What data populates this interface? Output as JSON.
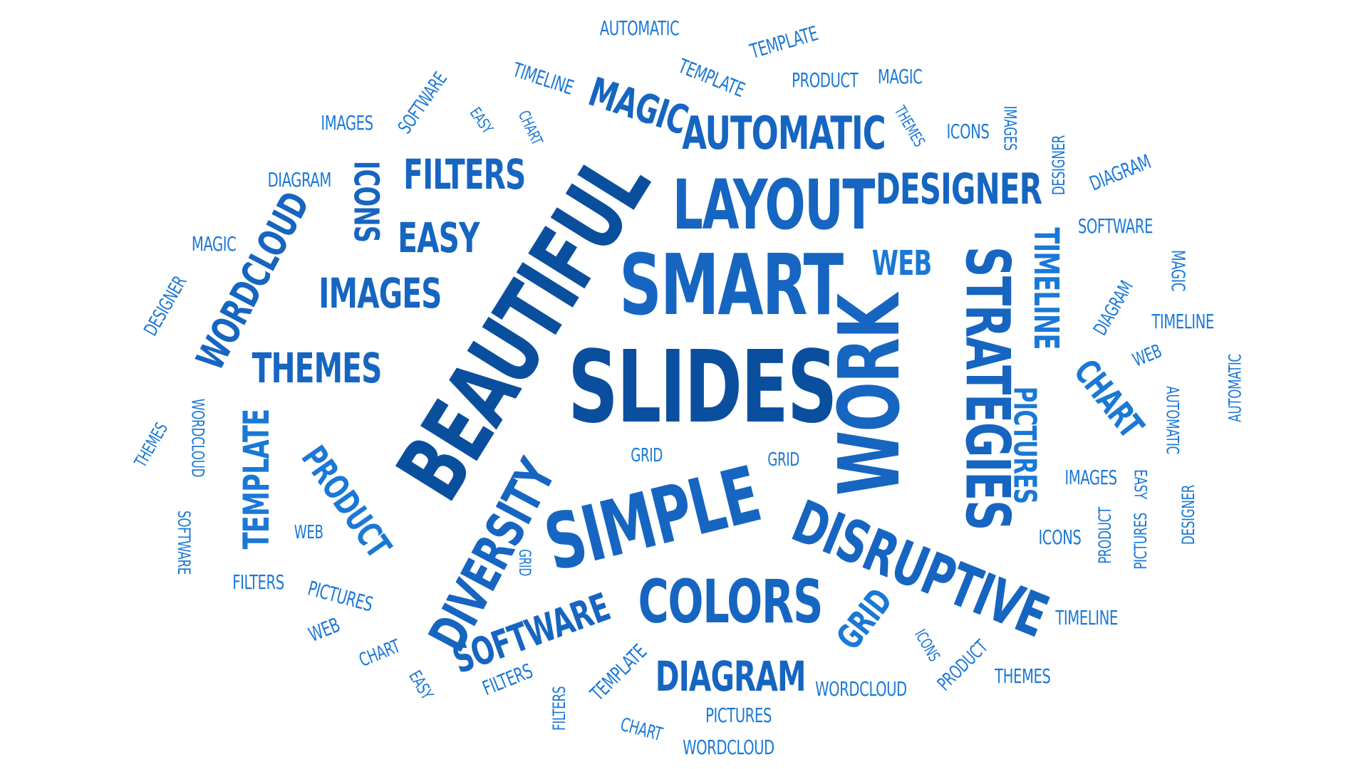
{
  "colors": {
    "background": "#ffffff",
    "dark": "#0a4f9e",
    "mid": "#1665c1",
    "light": "#1a78d6"
  },
  "words": [
    "BEAUTIFUL",
    "SLIDES",
    "SMART",
    "SIMPLE",
    "WORK",
    "STRATEGIES",
    "LAYOUT",
    "DISRUPTIVE",
    "DIVERSITY",
    "COLORS",
    "AUTOMATIC",
    "DESIGNER",
    "MAGIC",
    "FILTERS",
    "WORDCLOUD",
    "IMAGES",
    "THEMES",
    "EASY",
    "ICONS",
    "SOFTWARE",
    "DIAGRAM",
    "PRODUCT",
    "TEMPLATE",
    "TIMELINE",
    "PICTURES",
    "CHART",
    "WEB",
    "GRID",
    "AUTOMATIC",
    "TEMPLATE",
    "TIMELINE",
    "TEMPLATE",
    "PRODUCT",
    "MAGIC",
    "SOFTWARE",
    "EASY",
    "CHART",
    "IMAGES",
    "THEMES",
    "ICONS",
    "IMAGES",
    "DESIGNER",
    "DIAGRAM",
    "DIAGRAM",
    "SOFTWARE",
    "MAGIC",
    "MAGIC",
    "DESIGNER",
    "DIAGRAM",
    "TIMELINE",
    "WEB",
    "AUTOMATIC",
    "AUTOMATIC",
    "THEMES",
    "WORDCLOUD",
    "SOFTWARE",
    "GRID",
    "GRID",
    "WEB",
    "GRID",
    "FILTERS",
    "PICTURES",
    "IMAGES",
    "EASY",
    "ICONS",
    "PRODUCT",
    "PICTURES",
    "DESIGNER",
    "WEB",
    "CHART",
    "EASY",
    "FILTERS",
    "FILTERS",
    "TEMPLATE",
    "CHART",
    "PICTURES",
    "WORDCLOUD",
    "WORDCLOUD",
    "ICONS",
    "PRODUCT",
    "THEMES",
    "TIMELINE"
  ]
}
